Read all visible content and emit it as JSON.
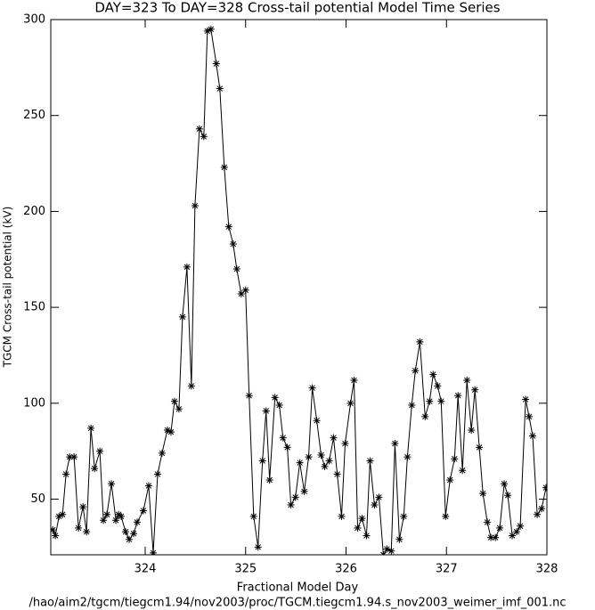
{
  "chart_data": {
    "type": "line",
    "title": "DAY=323 To DAY=328 Cross-tail potential Model Time Series",
    "xlabel": "Fractional Model Day",
    "ylabel": "TGCM Cross-tail potential (kV)",
    "footer": "/hao/aim2/tgcm/tiegcm1.94/nov2003/proc/TGCM.tiegcm1.94.s_nov2003_weimer_imf_001.nc",
    "xlim": [
      323.06,
      328
    ],
    "ylim": [
      21,
      300
    ],
    "xticks": [
      324,
      325,
      326,
      327,
      328
    ],
    "yticks": [
      50,
      100,
      150,
      200,
      250,
      300
    ],
    "color": "#000000",
    "x": [
      323.08,
      323.106,
      323.142,
      323.177,
      323.212,
      323.248,
      323.292,
      323.336,
      323.381,
      323.416,
      323.46,
      323.496,
      323.549,
      323.584,
      323.619,
      323.664,
      323.708,
      323.735,
      323.761,
      323.805,
      323.841,
      323.885,
      323.92,
      323.982,
      324.035,
      324.08,
      324.124,
      324.168,
      324.221,
      324.257,
      324.292,
      324.336,
      324.372,
      324.416,
      324.46,
      324.496,
      324.54,
      324.584,
      324.619,
      324.655,
      324.708,
      324.743,
      324.788,
      324.832,
      324.876,
      324.912,
      324.956,
      325.0,
      325.035,
      325.08,
      325.124,
      325.168,
      325.204,
      325.239,
      325.292,
      325.336,
      325.372,
      325.416,
      325.451,
      325.496,
      325.54,
      325.584,
      325.628,
      325.664,
      325.708,
      325.752,
      325.788,
      325.832,
      325.876,
      325.912,
      325.956,
      325.991,
      326.044,
      326.08,
      326.115,
      326.159,
      326.204,
      326.239,
      326.283,
      326.327,
      326.372,
      326.407,
      326.451,
      326.487,
      326.531,
      326.575,
      326.611,
      326.655,
      326.69,
      326.735,
      326.788,
      326.832,
      326.867,
      326.912,
      326.947,
      326.991,
      327.035,
      327.08,
      327.115,
      327.159,
      327.204,
      327.248,
      327.283,
      327.327,
      327.363,
      327.407,
      327.442,
      327.487,
      327.531,
      327.575,
      327.611,
      327.655,
      327.699,
      327.735,
      327.788,
      327.823,
      327.858,
      327.903,
      327.947,
      327.991
    ],
    "values": [
      34,
      31,
      41,
      42,
      63,
      72,
      72,
      35,
      46,
      33,
      87,
      66,
      75,
      39,
      42,
      58,
      39,
      42,
      41,
      33,
      29,
      32,
      38,
      44,
      57,
      22,
      63,
      74,
      86,
      85,
      101,
      97,
      145,
      171,
      109,
      203,
      243,
      239,
      294,
      295,
      277,
      264,
      223,
      192,
      183,
      170,
      157,
      159,
      104,
      41,
      25,
      70,
      96,
      60,
      103,
      99,
      82,
      77,
      47,
      51,
      69,
      54,
      72,
      108,
      91,
      73,
      67,
      70,
      82,
      63,
      41,
      79,
      100,
      112,
      35,
      40,
      31,
      70,
      47,
      51,
      21,
      24,
      23,
      79,
      29,
      41,
      72,
      99,
      117,
      132,
      93,
      101,
      115,
      109,
      101,
      41,
      60,
      71,
      104,
      65,
      112,
      86,
      107,
      77,
      53,
      38,
      30,
      30,
      35,
      58,
      52,
      31,
      33,
      36,
      102,
      93,
      83,
      42,
      45,
      56
    ]
  }
}
